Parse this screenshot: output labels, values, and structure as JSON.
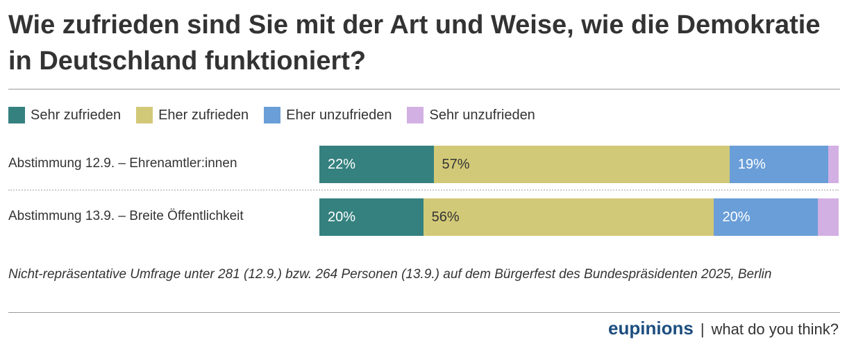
{
  "title": "Wie zufrieden sind Sie mit der Art und Weise, wie die Demokratie in Deutschland funktioniert?",
  "chart_data": {
    "type": "bar",
    "orientation": "horizontal-stacked-100",
    "title": "Wie zufrieden sind Sie mit der Art und Weise, wie die Demokratie in Deutschland funktioniert?",
    "categories": [
      "Abstimmung 12.9. – Ehrenamtler:innen",
      "Abstimmung 13.9. – Breite Öffentlichkeit"
    ],
    "series": [
      {
        "name": "Sehr zufrieden",
        "color": "#35817f",
        "text_color": "#ffffff",
        "values": [
          22,
          20
        ],
        "labels": [
          "22%",
          "20%"
        ]
      },
      {
        "name": "Eher zufrieden",
        "color": "#d2c978",
        "text_color": "#333333",
        "values": [
          57,
          56
        ],
        "labels": [
          "57%",
          "56%"
        ]
      },
      {
        "name": "Eher unzufrieden",
        "color": "#6a9ed8",
        "text_color": "#ffffff",
        "values": [
          19,
          20
        ],
        "labels": [
          "19%",
          "20%"
        ]
      },
      {
        "name": "Sehr unzufrieden",
        "color": "#d2b0e3",
        "text_color": "#333333",
        "values": [
          2,
          4
        ],
        "labels": [
          "",
          ""
        ]
      }
    ],
    "legend_position": "top-left",
    "xlim": [
      0,
      100
    ]
  },
  "note": "Nicht-repräsentative Umfrage unter 281 (12.9.) bzw. 264 Personen (13.9.) auf dem Bürgerfest des Bundespräsidenten 2025, Berlin",
  "footer": {
    "brand": "eupinions",
    "separator": "|",
    "tagline": "what do you think?"
  }
}
